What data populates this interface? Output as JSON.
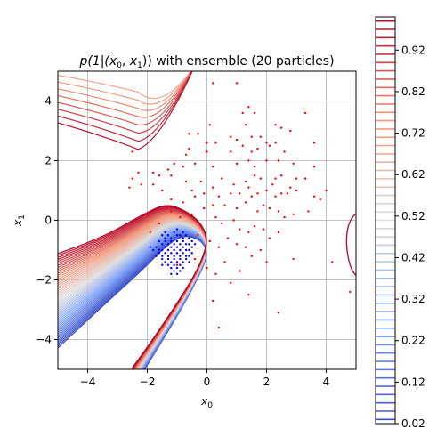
{
  "chart_data": {
    "type": "scatter",
    "title": "p(1|(x_0, x_1)) with ensemble (20 particles)",
    "title_parts": {
      "prefix": "p(1|(",
      "var0": "x",
      "sub0": "0",
      "sep": ", ",
      "var1": "x",
      "sub1": "1",
      "suffix": ")) with ensemble (20 particles)"
    },
    "xlabel": {
      "var": "x",
      "sub": "0"
    },
    "ylabel": {
      "var": "x",
      "sub": "1"
    },
    "xlim": [
      -5,
      5
    ],
    "ylim": [
      -5,
      5
    ],
    "xticks": [
      -4,
      -2,
      0,
      2,
      4
    ],
    "yticks": [
      -4,
      -2,
      0,
      2,
      4
    ],
    "xtick_labels": [
      "−4",
      "−2",
      "0",
      "2",
      "4"
    ],
    "ytick_labels": [
      "−4",
      "−2",
      "0",
      "2",
      "4"
    ],
    "grid": true,
    "colormap": "coolwarm",
    "colorbar": {
      "range": [
        0.02,
        1.0
      ],
      "ticks": [
        0.02,
        0.12,
        0.22,
        0.32,
        0.42,
        0.52,
        0.62,
        0.72,
        0.82,
        0.92
      ],
      "tick_labels": [
        "0.02",
        "0.12",
        "0.22",
        "0.32",
        "0.42",
        "0.52",
        "0.62",
        "0.72",
        "0.82",
        "0.92"
      ]
    },
    "series": [
      {
        "class": 1,
        "color": "#ff0000",
        "points": [
          [
            1.0,
            4.6
          ],
          [
            0.2,
            4.6
          ],
          [
            1.4,
            3.8
          ],
          [
            1.6,
            3.6
          ],
          [
            1.2,
            3.6
          ],
          [
            1.3,
            3.2
          ],
          [
            3.3,
            3.6
          ],
          [
            2.3,
            3.2
          ],
          [
            2.5,
            3.1
          ],
          [
            0.1,
            3.2
          ],
          [
            -0.3,
            2.9
          ],
          [
            -0.6,
            2.9
          ],
          [
            0.0,
            2.6
          ],
          [
            0.3,
            2.6
          ],
          [
            0.8,
            2.8
          ],
          [
            1.0,
            2.7
          ],
          [
            1.5,
            2.8
          ],
          [
            1.8,
            2.8
          ],
          [
            2.0,
            2.6
          ],
          [
            2.8,
            3.0
          ],
          [
            -0.6,
            2.4
          ],
          [
            -0.7,
            2.2
          ],
          [
            0.0,
            2.3
          ],
          [
            1.2,
            2.5
          ],
          [
            1.5,
            2.3
          ],
          [
            1.7,
            2.4
          ],
          [
            2.1,
            2.5
          ],
          [
            2.3,
            2.6
          ],
          [
            2.6,
            2.3
          ],
          [
            3.6,
            2.6
          ],
          [
            -2.5,
            2.3
          ],
          [
            -1.8,
            1.6
          ],
          [
            -1.6,
            1.5
          ],
          [
            -2.3,
            1.6
          ],
          [
            -1.3,
            1.7
          ],
          [
            -2.5,
            1.4
          ],
          [
            -1.2,
            1.5
          ],
          [
            -1.1,
            1.9
          ],
          [
            -0.8,
            1.8
          ],
          [
            -0.4,
            1.9
          ],
          [
            0.2,
            1.8
          ],
          [
            0.8,
            2.3
          ],
          [
            1.0,
            1.9
          ],
          [
            1.4,
            2.0
          ],
          [
            1.6,
            1.8
          ],
          [
            2.0,
            2.0
          ],
          [
            2.4,
            2.0
          ],
          [
            2.9,
            1.9
          ],
          [
            3.6,
            1.8
          ],
          [
            2.3,
            1.4
          ],
          [
            -2.2,
            1.2
          ],
          [
            -2.6,
            1.1
          ],
          [
            -0.7,
            1.3
          ],
          [
            -0.2,
            1.3
          ],
          [
            0.2,
            1.1
          ],
          [
            0.5,
            1.4
          ],
          [
            0.9,
            1.2
          ],
          [
            1.3,
            1.3
          ],
          [
            1.6,
            1.5
          ],
          [
            1.8,
            1.4
          ],
          [
            2.2,
            1.2
          ],
          [
            2.5,
            1.5
          ],
          [
            2.8,
            1.1
          ],
          [
            3.0,
            1.4
          ],
          [
            3.3,
            1.4
          ],
          [
            -1.5,
            1.0
          ],
          [
            -1.8,
            1.2
          ],
          [
            -0.5,
            1.0
          ],
          [
            -0.1,
            0.9
          ],
          [
            0.4,
            0.8
          ],
          [
            0.8,
            0.9
          ],
          [
            1.1,
            0.9
          ],
          [
            1.4,
            1.1
          ],
          [
            1.7,
            0.9
          ],
          [
            2.0,
            1.0
          ],
          [
            2.3,
            0.8
          ],
          [
            2.5,
            0.9
          ],
          [
            2.7,
            0.9
          ],
          [
            3.0,
            1.0
          ],
          [
            3.6,
            0.8
          ],
          [
            3.8,
            0.7
          ],
          [
            4.0,
            1.0
          ],
          [
            -1.2,
            0.7
          ],
          [
            -0.8,
            0.6
          ],
          [
            -0.4,
            0.8
          ],
          [
            0.2,
            0.5
          ],
          [
            0.6,
            0.5
          ],
          [
            1.0,
            0.4
          ],
          [
            1.3,
            0.6
          ],
          [
            1.5,
            0.8
          ],
          [
            1.7,
            0.3
          ],
          [
            1.9,
            0.5
          ],
          [
            2.1,
            0.4
          ],
          [
            2.4,
            0.3
          ],
          [
            2.6,
            0.1
          ],
          [
            2.9,
            0.2
          ],
          [
            -2.0,
            0.2
          ],
          [
            -1.6,
            -0.1
          ],
          [
            -1.2,
            0.3
          ],
          [
            -0.9,
            0.1
          ],
          [
            -0.5,
            0.2
          ],
          [
            -0.1,
            0.4
          ],
          [
            0.3,
            0.1
          ],
          [
            0.5,
            -0.1
          ],
          [
            0.9,
            0.0
          ],
          [
            1.1,
            -0.3
          ],
          [
            1.4,
            -0.4
          ],
          [
            1.6,
            -0.2
          ],
          [
            1.9,
            -0.3
          ],
          [
            2.1,
            -0.6
          ],
          [
            -1.9,
            -0.4
          ],
          [
            -1.4,
            -0.6
          ],
          [
            -0.3,
            -0.5
          ],
          [
            0.1,
            -0.7
          ],
          [
            0.4,
            -0.9
          ],
          [
            0.7,
            -0.6
          ],
          [
            1.0,
            -0.8
          ],
          [
            1.3,
            -0.9
          ],
          [
            1.8,
            -1.0
          ],
          [
            2.0,
            -1.4
          ],
          [
            -1.0,
            -1.5
          ],
          [
            -0.4,
            -1.3
          ],
          [
            0.0,
            -1.6
          ],
          [
            0.3,
            -1.8
          ],
          [
            0.6,
            -1.4
          ],
          [
            1.1,
            -1.7
          ],
          [
            1.5,
            -1.2
          ],
          [
            2.9,
            -1.3
          ],
          [
            4.2,
            -1.4
          ],
          [
            0.2,
            -2.7
          ],
          [
            1.4,
            -2.5
          ],
          [
            2.4,
            -3.1
          ],
          [
            0.4,
            -3.6
          ],
          [
            4.8,
            -2.4
          ],
          [
            -0.6,
            -2.2
          ],
          [
            0.8,
            -2.1
          ],
          [
            2.4,
            -0.4
          ],
          [
            3.4,
            0.3
          ]
        ]
      },
      {
        "class": 0,
        "color": "#0000ff",
        "points": [
          [
            -1.5,
            -0.5
          ],
          [
            -1.4,
            -0.6
          ],
          [
            -1.3,
            -0.5
          ],
          [
            -1.2,
            -0.6
          ],
          [
            -1.1,
            -0.4
          ],
          [
            -1.0,
            -0.5
          ],
          [
            -0.9,
            -0.5
          ],
          [
            -0.8,
            -0.6
          ],
          [
            -0.7,
            -0.5
          ],
          [
            -0.6,
            -0.6
          ],
          [
            -1.6,
            -0.7
          ],
          [
            -1.5,
            -0.8
          ],
          [
            -1.4,
            -0.7
          ],
          [
            -1.3,
            -0.8
          ],
          [
            -1.2,
            -0.7
          ],
          [
            -1.1,
            -0.8
          ],
          [
            -1.0,
            -0.7
          ],
          [
            -0.9,
            -0.8
          ],
          [
            -0.8,
            -0.7
          ],
          [
            -0.7,
            -0.8
          ],
          [
            -0.6,
            -0.8
          ],
          [
            -0.5,
            -0.7
          ],
          [
            -1.7,
            -0.9
          ],
          [
            -1.6,
            -1.0
          ],
          [
            -1.5,
            -1.0
          ],
          [
            -1.4,
            -0.9
          ],
          [
            -1.3,
            -1.0
          ],
          [
            -1.2,
            -0.9
          ],
          [
            -1.1,
            -1.0
          ],
          [
            -1.0,
            -0.9
          ],
          [
            -0.9,
            -1.0
          ],
          [
            -0.8,
            -0.9
          ],
          [
            -0.7,
            -1.0
          ],
          [
            -0.6,
            -1.0
          ],
          [
            -0.5,
            -0.9
          ],
          [
            -1.6,
            -1.1
          ],
          [
            -1.5,
            -1.2
          ],
          [
            -1.4,
            -1.1
          ],
          [
            -1.3,
            -1.2
          ],
          [
            -1.2,
            -1.1
          ],
          [
            -1.1,
            -1.2
          ],
          [
            -1.0,
            -1.1
          ],
          [
            -0.9,
            -1.2
          ],
          [
            -0.8,
            -1.1
          ],
          [
            -0.7,
            -1.2
          ],
          [
            -0.6,
            -1.2
          ],
          [
            -1.5,
            -1.3
          ],
          [
            -1.4,
            -1.4
          ],
          [
            -1.3,
            -1.3
          ],
          [
            -1.2,
            -1.4
          ],
          [
            -1.1,
            -1.3
          ],
          [
            -1.0,
            -1.4
          ],
          [
            -0.9,
            -1.3
          ],
          [
            -0.8,
            -1.4
          ],
          [
            -0.7,
            -1.3
          ],
          [
            -1.3,
            -1.5
          ],
          [
            -1.2,
            -1.6
          ],
          [
            -1.1,
            -1.5
          ],
          [
            -1.0,
            -1.6
          ],
          [
            -0.9,
            -1.5
          ],
          [
            -1.1,
            -1.7
          ],
          [
            -1.0,
            -1.8
          ],
          [
            -0.9,
            -1.7
          ],
          [
            -1.8,
            -1.0
          ],
          [
            -1.9,
            -0.9
          ],
          [
            -0.4,
            -0.8
          ],
          [
            -0.5,
            -1.1
          ],
          [
            -1.4,
            -0.4
          ],
          [
            -1.0,
            -0.3
          ],
          [
            -0.8,
            -0.4
          ],
          [
            -1.2,
            -1.8
          ],
          [
            -0.8,
            -1.6
          ],
          [
            -1.7,
            -1.2
          ],
          [
            -0.6,
            -1.4
          ],
          [
            -1.5,
            -1.5
          ]
        ]
      }
    ]
  }
}
